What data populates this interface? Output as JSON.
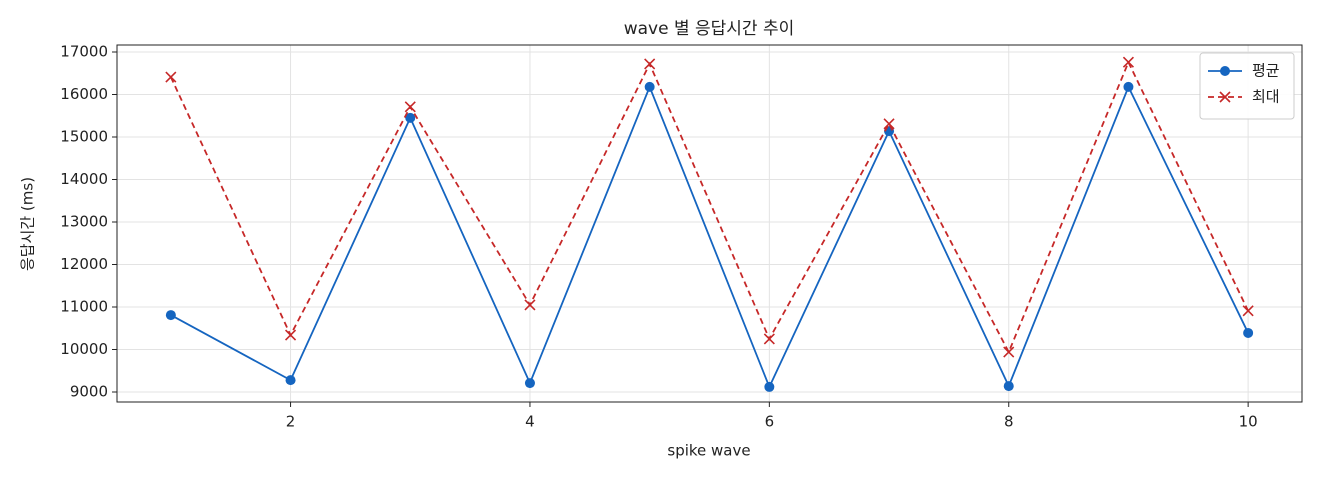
{
  "chart_data": {
    "type": "line",
    "title": "wave 별 응답시간 추이",
    "xlabel": "spike wave",
    "ylabel": "응답시간 (ms)",
    "x": [
      1,
      2,
      3,
      4,
      5,
      6,
      7,
      8,
      9,
      10
    ],
    "series": [
      {
        "name": "평균",
        "color": "#1565c0",
        "marker": "o",
        "linestyle": "solid",
        "values": [
          10810,
          9280,
          15450,
          9210,
          16180,
          9120,
          15140,
          9140,
          16180,
          10390
        ]
      },
      {
        "name": "최대",
        "color": "#c62828",
        "marker": "x",
        "linestyle": "dashed",
        "values": [
          16410,
          10340,
          15710,
          11050,
          16720,
          10250,
          15310,
          9940,
          16760,
          10910
        ]
      }
    ],
    "xlim": [
      0.55,
      10.45
    ],
    "xticks": [
      2,
      4,
      6,
      8,
      10
    ],
    "ylim": [
      8765,
      17165
    ],
    "yticks": [
      9000,
      10000,
      11000,
      12000,
      13000,
      14000,
      15000,
      16000,
      17000
    ],
    "grid": true,
    "legend": "upper right"
  }
}
